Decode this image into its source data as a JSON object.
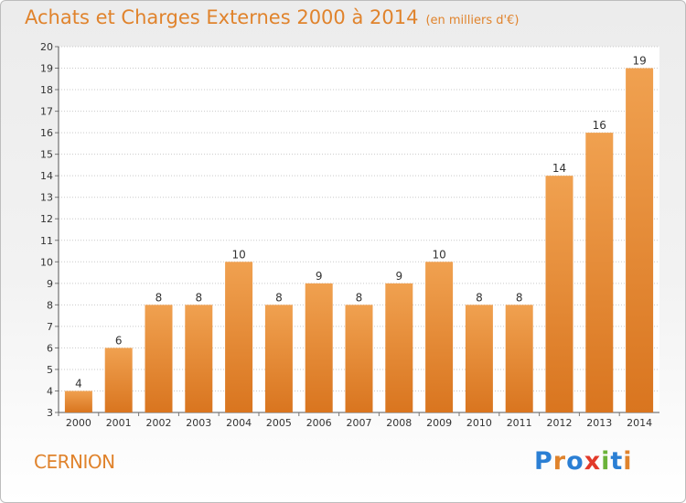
{
  "chart_data": {
    "type": "bar",
    "title": "Achats et Charges Externes 2000 à 2014",
    "subtitle": "(en milliers d'€)",
    "categories": [
      "2000",
      "2001",
      "2002",
      "2003",
      "2004",
      "2005",
      "2006",
      "2007",
      "2008",
      "2009",
      "2010",
      "2011",
      "2012",
      "2013",
      "2014"
    ],
    "values": [
      4,
      6,
      8,
      8,
      10,
      8,
      9,
      8,
      9,
      10,
      8,
      8,
      14,
      16,
      19
    ],
    "ylim": [
      3,
      20
    ],
    "yticks": [
      3,
      4,
      5,
      6,
      7,
      8,
      9,
      10,
      11,
      12,
      13,
      14,
      15,
      16,
      17,
      18,
      19,
      20
    ],
    "grid": "horizontal dotted",
    "bar_color": "#f0a150",
    "bar_color_bottom": "#d9751f"
  },
  "footer": {
    "commune": "CERNION",
    "logo": "Proxiti"
  },
  "colors": {
    "title": "#e0832c",
    "logo_letters": [
      "#2b7fd4",
      "#e0832c",
      "#2b7fd4",
      "#e23a2a",
      "#6bb33a",
      "#2b7fd4",
      "#e0832c"
    ]
  }
}
